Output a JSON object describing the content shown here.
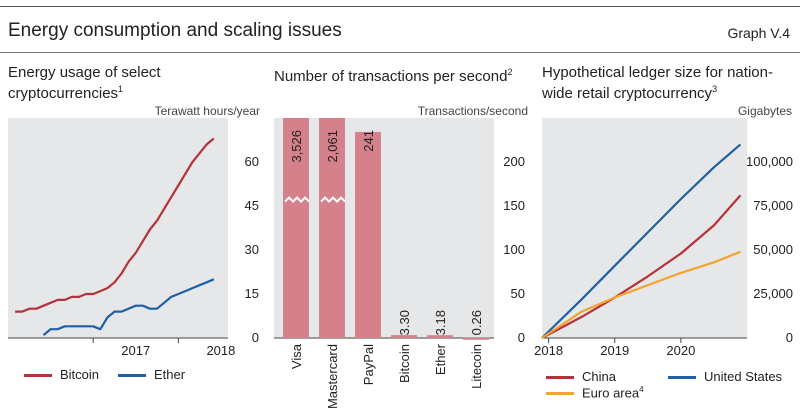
{
  "header": {
    "title": "Energy consumption and scaling issues",
    "graph_label": "Graph V.4"
  },
  "chart_data": [
    {
      "type": "line",
      "title": "Energy usage of select cryptocurrencies",
      "title_note": "1",
      "ylabel": "Terawatt hours/year",
      "ylim": [
        0,
        75
      ],
      "yticks": [
        0,
        15,
        30,
        45,
        60
      ],
      "xticks": [
        "2017",
        "2018"
      ],
      "legend_position": "bottom",
      "series": [
        {
          "name": "Bitcoin",
          "color": "#b5323a",
          "x": [
            "2016-02",
            "2016-03",
            "2016-04",
            "2016-05",
            "2016-06",
            "2016-07",
            "2016-08",
            "2016-09",
            "2016-10",
            "2016-11",
            "2016-12",
            "2017-01",
            "2017-02",
            "2017-03",
            "2017-04",
            "2017-05",
            "2017-06",
            "2017-07",
            "2017-08",
            "2017-09",
            "2017-10",
            "2017-11",
            "2017-12",
            "2018-01",
            "2018-02",
            "2018-03",
            "2018-04",
            "2018-05",
            "2018-06"
          ],
          "values": [
            9,
            9,
            10,
            10,
            11,
            12,
            13,
            13,
            14,
            14,
            15,
            15,
            16,
            17,
            19,
            22,
            26,
            29,
            33,
            37,
            40,
            44,
            48,
            52,
            56,
            60,
            63,
            66,
            68
          ]
        },
        {
          "name": "Ether",
          "color": "#1f5fa3",
          "x": [
            "2016-06",
            "2016-07",
            "2016-08",
            "2016-09",
            "2016-10",
            "2016-11",
            "2016-12",
            "2017-01",
            "2017-02",
            "2017-03",
            "2017-04",
            "2017-05",
            "2017-06",
            "2017-07",
            "2017-08",
            "2017-09",
            "2017-10",
            "2017-11",
            "2017-12",
            "2018-01",
            "2018-02",
            "2018-03",
            "2018-04",
            "2018-05",
            "2018-06"
          ],
          "values": [
            1,
            3,
            3,
            4,
            4,
            4,
            4,
            4,
            3,
            7,
            9,
            9,
            10,
            11,
            11,
            10,
            10,
            12,
            14,
            15,
            16,
            17,
            18,
            19,
            20
          ]
        }
      ]
    },
    {
      "type": "bar",
      "title": "Number of transactions per second",
      "title_note": "2",
      "ylabel": "Transactions/second",
      "ylim": [
        0,
        250
      ],
      "yticks": [
        0,
        50,
        100,
        150,
        200
      ],
      "axis_break": true,
      "categories": [
        "Visa",
        "Mastercard",
        "PayPal",
        "Bitcoin",
        "Ether",
        "Litecoin"
      ],
      "values": [
        3526,
        2061,
        241,
        3.3,
        3.18,
        0.26
      ],
      "value_labels": [
        "3,526",
        "2,061",
        "241",
        "3.30",
        "3.18",
        "0.26"
      ],
      "color": "#d4818c"
    },
    {
      "type": "line",
      "title": "Hypothetical ledger size for nation-wide retail cryptocurrency",
      "title_note": "3",
      "ylabel": "Gigabytes",
      "ylim": [
        0,
        125000
      ],
      "yticks": [
        0,
        25000,
        50000,
        75000,
        100000
      ],
      "ytick_labels": [
        "0",
        "25,000",
        "50,000",
        "75,000",
        "100,000"
      ],
      "xticks": [
        "2018",
        "2019",
        "2020"
      ],
      "legend_position": "bottom",
      "series": [
        {
          "name": "China",
          "color": "#b5323a",
          "x": [
            2017.9,
            2018.5,
            2019.0,
            2019.5,
            2020.0,
            2020.5,
            2020.9
          ],
          "values": [
            0,
            12000,
            23000,
            35000,
            48000,
            64000,
            81000
          ]
        },
        {
          "name": "United States",
          "color": "#1f5fa3",
          "x": [
            2017.9,
            2018.5,
            2019.0,
            2019.5,
            2020.0,
            2020.5,
            2020.9
          ],
          "values": [
            0,
            22000,
            41000,
            60000,
            79000,
            97000,
            110000
          ]
        },
        {
          "name": "Euro area",
          "name_note": "4",
          "color": "#f2a42b",
          "x": [
            2017.9,
            2018.5,
            2019.0,
            2019.5,
            2020.0,
            2020.5,
            2020.9
          ],
          "values": [
            0,
            15000,
            23000,
            30000,
            37000,
            43000,
            49000
          ]
        }
      ]
    }
  ]
}
